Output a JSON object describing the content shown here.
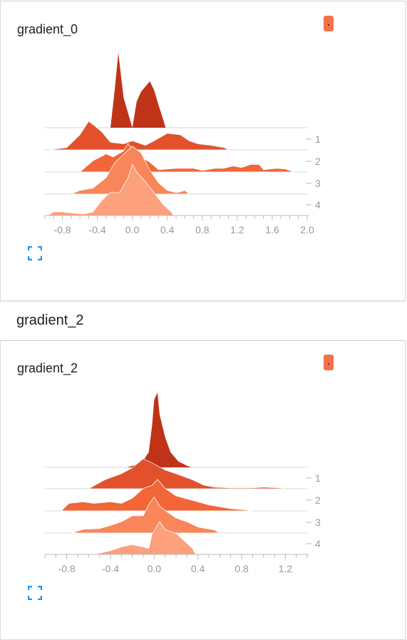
{
  "colors": {
    "accent": "#f5704a",
    "expand_icon": "#2196f3"
  },
  "cards": [
    {
      "title": "gradient_0"
    },
    {
      "title": "gradient_2"
    }
  ],
  "section": {
    "title": "gradient_2"
  },
  "chart_data": [
    {
      "type": "area",
      "xlim": [
        -1.0,
        2.0
      ],
      "x_ticks": [
        "-0.8",
        "-0.4",
        "0.0",
        "0.4",
        "0.8",
        "1.2",
        "1.6",
        "2.0"
      ],
      "x_tick_values": [
        -0.8,
        -0.4,
        0.0,
        0.4,
        0.8,
        1.2,
        1.6,
        2.0
      ],
      "y_ticks": [
        "1",
        "2",
        "3",
        "4"
      ],
      "series": [
        {
          "step": "0",
          "points": [
            [
              -0.25,
              0
            ],
            [
              -0.2,
              0.52
            ],
            [
              -0.16,
              1.0
            ],
            [
              -0.1,
              0.4
            ],
            [
              -0.05,
              0.2
            ],
            [
              0.0,
              0
            ],
            [
              0.05,
              0.35
            ],
            [
              0.1,
              0.48
            ],
            [
              0.15,
              0.55
            ],
            [
              0.2,
              0.62
            ],
            [
              0.25,
              0.5
            ],
            [
              0.3,
              0.3
            ],
            [
              0.35,
              0.12
            ],
            [
              0.38,
              0
            ]
          ]
        },
        {
          "step": "1",
          "points": [
            [
              -0.95,
              0
            ],
            [
              -0.75,
              0.03
            ],
            [
              -0.6,
              0.2
            ],
            [
              -0.5,
              0.38
            ],
            [
              -0.42,
              0.31
            ],
            [
              -0.35,
              0.24
            ],
            [
              -0.25,
              0.1
            ],
            [
              -0.1,
              0.08
            ],
            [
              0.0,
              0.12
            ],
            [
              0.15,
              0.06
            ],
            [
              0.25,
              0.12
            ],
            [
              0.4,
              0.22
            ],
            [
              0.55,
              0.2
            ],
            [
              0.65,
              0.12
            ],
            [
              0.75,
              0.08
            ],
            [
              0.9,
              0.06
            ],
            [
              1.05,
              0.03
            ],
            [
              1.1,
              0
            ]
          ]
        },
        {
          "step": "2",
          "points": [
            [
              -0.6,
              0
            ],
            [
              -0.45,
              0.15
            ],
            [
              -0.3,
              0.24
            ],
            [
              -0.22,
              0.2
            ],
            [
              -0.1,
              0.28
            ],
            [
              -0.05,
              0.38
            ],
            [
              0.0,
              0.3
            ],
            [
              0.1,
              0.2
            ],
            [
              0.2,
              0.13
            ],
            [
              0.3,
              0.03
            ],
            [
              0.5,
              0.05
            ],
            [
              0.7,
              0.05
            ],
            [
              0.8,
              0.02
            ],
            [
              0.95,
              0.05
            ],
            [
              1.05,
              0.05
            ],
            [
              1.15,
              0.08
            ],
            [
              1.25,
              0.06
            ],
            [
              1.35,
              0.1
            ],
            [
              1.45,
              0.1
            ],
            [
              1.5,
              0.03
            ],
            [
              1.65,
              0.05
            ],
            [
              1.75,
              0.04
            ],
            [
              1.85,
              0
            ]
          ]
        },
        {
          "step": "3",
          "points": [
            [
              -0.7,
              0
            ],
            [
              -0.6,
              0.05
            ],
            [
              -0.45,
              0.08
            ],
            [
              -0.3,
              0.22
            ],
            [
              -0.2,
              0.42
            ],
            [
              -0.1,
              0.53
            ],
            [
              0.0,
              0.64
            ],
            [
              0.1,
              0.55
            ],
            [
              0.2,
              0.32
            ],
            [
              0.3,
              0.15
            ],
            [
              0.4,
              0.05
            ],
            [
              0.5,
              0.02
            ],
            [
              0.55,
              0.03
            ],
            [
              0.6,
              0.05
            ],
            [
              0.65,
              0
            ]
          ]
        },
        {
          "step": "4",
          "points": [
            [
              -0.97,
              0
            ],
            [
              -0.9,
              0.05
            ],
            [
              -0.8,
              0.05
            ],
            [
              -0.75,
              0.04
            ],
            [
              -0.65,
              0.03
            ],
            [
              -0.55,
              0.02
            ],
            [
              -0.45,
              0.05
            ],
            [
              -0.35,
              0.2
            ],
            [
              -0.25,
              0.31
            ],
            [
              -0.15,
              0.3
            ],
            [
              -0.05,
              0.5
            ],
            [
              0.0,
              0.68
            ],
            [
              0.05,
              0.58
            ],
            [
              0.15,
              0.45
            ],
            [
              0.25,
              0.3
            ],
            [
              0.35,
              0.15
            ],
            [
              0.45,
              0.04
            ],
            [
              0.47,
              0
            ]
          ]
        }
      ]
    },
    {
      "type": "area",
      "xlim": [
        -1.0,
        1.4
      ],
      "x_ticks": [
        "-0.8",
        "-0.4",
        "0.0",
        "0.4",
        "0.8",
        "1.2"
      ],
      "x_tick_values": [
        -0.8,
        -0.4,
        0.0,
        0.4,
        0.8,
        1.2
      ],
      "y_ticks": [
        "1",
        "2",
        "3",
        "4"
      ],
      "series": [
        {
          "step": "0",
          "points": [
            [
              -0.25,
              0
            ],
            [
              -0.12,
              0.05
            ],
            [
              -0.05,
              0.2
            ],
            [
              -0.02,
              0.55
            ],
            [
              0.0,
              0.9
            ],
            [
              0.03,
              1.0
            ],
            [
              0.05,
              0.7
            ],
            [
              0.1,
              0.4
            ],
            [
              0.15,
              0.2
            ],
            [
              0.22,
              0.08
            ],
            [
              0.3,
              0.02
            ],
            [
              0.34,
              0
            ]
          ]
        },
        {
          "step": "1",
          "points": [
            [
              -0.6,
              0
            ],
            [
              -0.45,
              0.12
            ],
            [
              -0.3,
              0.2
            ],
            [
              -0.2,
              0.28
            ],
            [
              -0.1,
              0.4
            ],
            [
              0.0,
              0.33
            ],
            [
              0.1,
              0.25
            ],
            [
              0.2,
              0.2
            ],
            [
              0.35,
              0.12
            ],
            [
              0.45,
              0.05
            ],
            [
              0.55,
              0.02
            ],
            [
              0.7,
              0.01
            ],
            [
              0.9,
              0.01
            ],
            [
              1.0,
              0.02
            ],
            [
              1.15,
              0.01
            ],
            [
              1.2,
              0
            ]
          ]
        },
        {
          "step": "2",
          "points": [
            [
              -0.85,
              0
            ],
            [
              -0.78,
              0.1
            ],
            [
              -0.65,
              0.12
            ],
            [
              -0.55,
              0.1
            ],
            [
              -0.4,
              0.12
            ],
            [
              -0.3,
              0.1
            ],
            [
              -0.2,
              0.17
            ],
            [
              -0.1,
              0.3
            ],
            [
              -0.02,
              0.34
            ],
            [
              0.03,
              0.42
            ],
            [
              0.1,
              0.3
            ],
            [
              0.2,
              0.2
            ],
            [
              0.35,
              0.14
            ],
            [
              0.5,
              0.08
            ],
            [
              0.7,
              0.03
            ],
            [
              0.85,
              0.01
            ],
            [
              0.9,
              0
            ]
          ]
        },
        {
          "step": "3",
          "points": [
            [
              -0.75,
              0
            ],
            [
              -0.65,
              0.05
            ],
            [
              -0.5,
              0.06
            ],
            [
              -0.4,
              0.1
            ],
            [
              -0.3,
              0.15
            ],
            [
              -0.2,
              0.23
            ],
            [
              -0.1,
              0.23
            ],
            [
              -0.05,
              0.38
            ],
            [
              0.0,
              0.48
            ],
            [
              0.05,
              0.36
            ],
            [
              0.1,
              0.3
            ],
            [
              0.2,
              0.2
            ],
            [
              0.3,
              0.15
            ],
            [
              0.4,
              0.08
            ],
            [
              0.55,
              0.04
            ],
            [
              0.6,
              0
            ]
          ]
        },
        {
          "step": "4",
          "points": [
            [
              -0.55,
              0
            ],
            [
              -0.4,
              0.05
            ],
            [
              -0.3,
              0.1
            ],
            [
              -0.2,
              0.13
            ],
            [
              -0.1,
              0.1
            ],
            [
              -0.05,
              0.08
            ],
            [
              -0.02,
              0.27
            ],
            [
              0.05,
              0.44
            ],
            [
              0.1,
              0.33
            ],
            [
              0.2,
              0.28
            ],
            [
              0.3,
              0.15
            ],
            [
              0.35,
              0.08
            ],
            [
              0.38,
              0
            ]
          ]
        }
      ]
    }
  ]
}
